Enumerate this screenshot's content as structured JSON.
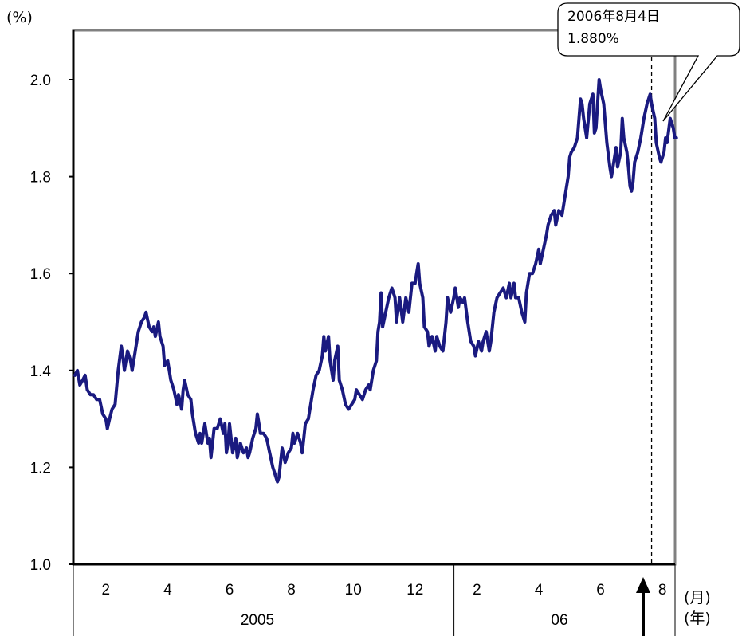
{
  "chart_data": {
    "type": "line",
    "y_unit": "(%)",
    "x_unit_month": "(月)",
    "x_unit_year": "(年)",
    "ylim": [
      1.0,
      2.1
    ],
    "yticks": [
      "1.0",
      "1.2",
      "1.4",
      "1.6",
      "1.8",
      "2.0"
    ],
    "ytick_values": [
      1.0,
      1.2,
      1.4,
      1.6,
      1.8,
      2.0
    ],
    "xlim": [
      0,
      19.3
    ],
    "month_ticks": [
      {
        "label": "2",
        "at": 1
      },
      {
        "label": "4",
        "at": 3
      },
      {
        "label": "6",
        "at": 5
      },
      {
        "label": "8",
        "at": 7
      },
      {
        "label": "10",
        "at": 9
      },
      {
        "label": "12",
        "at": 11
      },
      {
        "label": "2",
        "at": 13
      },
      {
        "label": "4",
        "at": 15
      },
      {
        "label": "6",
        "at": 17
      },
      {
        "label": "8",
        "at": 19
      }
    ],
    "years": [
      {
        "label": "2005",
        "from": 0,
        "to": 12
      },
      {
        "label": "06",
        "from": 12,
        "to": 19.3
      }
    ],
    "grid": false,
    "line_color": "#1a1a80",
    "reference_line_at": 18.7,
    "callout": {
      "date": "2006年8月4日",
      "value_text": "1.880%"
    },
    "series": [
      {
        "values": [
          [
            0.0,
            1.39
          ],
          [
            0.08,
            1.4
          ],
          [
            0.16,
            1.37
          ],
          [
            0.25,
            1.38
          ],
          [
            0.33,
            1.39
          ],
          [
            0.4,
            1.36
          ],
          [
            0.5,
            1.35
          ],
          [
            0.6,
            1.35
          ],
          [
            0.7,
            1.34
          ],
          [
            0.8,
            1.34
          ],
          [
            0.9,
            1.31
          ],
          [
            1.0,
            1.3
          ],
          [
            1.05,
            1.28
          ],
          [
            1.12,
            1.3
          ],
          [
            1.2,
            1.32
          ],
          [
            1.3,
            1.33
          ],
          [
            1.4,
            1.4
          ],
          [
            1.5,
            1.45
          ],
          [
            1.55,
            1.43
          ],
          [
            1.6,
            1.4
          ],
          [
            1.7,
            1.44
          ],
          [
            1.8,
            1.42
          ],
          [
            1.85,
            1.4
          ],
          [
            1.95,
            1.44
          ],
          [
            2.05,
            1.48
          ],
          [
            2.15,
            1.5
          ],
          [
            2.25,
            1.51
          ],
          [
            2.3,
            1.52
          ],
          [
            2.4,
            1.49
          ],
          [
            2.5,
            1.48
          ],
          [
            2.55,
            1.49
          ],
          [
            2.6,
            1.47
          ],
          [
            2.7,
            1.5
          ],
          [
            2.75,
            1.47
          ],
          [
            2.85,
            1.45
          ],
          [
            2.9,
            1.41
          ],
          [
            3.0,
            1.42
          ],
          [
            3.1,
            1.38
          ],
          [
            3.2,
            1.36
          ],
          [
            3.3,
            1.33
          ],
          [
            3.35,
            1.35
          ],
          [
            3.45,
            1.32
          ],
          [
            3.5,
            1.36
          ],
          [
            3.55,
            1.38
          ],
          [
            3.65,
            1.35
          ],
          [
            3.75,
            1.34
          ],
          [
            3.8,
            1.31
          ],
          [
            3.9,
            1.27
          ],
          [
            4.0,
            1.25
          ],
          [
            4.05,
            1.27
          ],
          [
            4.1,
            1.25
          ],
          [
            4.2,
            1.29
          ],
          [
            4.3,
            1.25
          ],
          [
            4.35,
            1.26
          ],
          [
            4.4,
            1.22
          ],
          [
            4.5,
            1.28
          ],
          [
            4.6,
            1.28
          ],
          [
            4.7,
            1.3
          ],
          [
            4.8,
            1.27
          ],
          [
            4.85,
            1.29
          ],
          [
            4.9,
            1.23
          ],
          [
            4.95,
            1.25
          ],
          [
            5.0,
            1.29
          ],
          [
            5.1,
            1.23
          ],
          [
            5.2,
            1.26
          ],
          [
            5.25,
            1.22
          ],
          [
            5.35,
            1.25
          ],
          [
            5.45,
            1.23
          ],
          [
            5.55,
            1.24
          ],
          [
            5.6,
            1.22
          ],
          [
            5.65,
            1.23
          ],
          [
            5.75,
            1.26
          ],
          [
            5.85,
            1.28
          ],
          [
            5.9,
            1.31
          ],
          [
            5.95,
            1.29
          ],
          [
            6.0,
            1.27
          ],
          [
            6.1,
            1.27
          ],
          [
            6.2,
            1.26
          ],
          [
            6.3,
            1.23
          ],
          [
            6.4,
            1.2
          ],
          [
            6.45,
            1.19
          ],
          [
            6.5,
            1.18
          ],
          [
            6.55,
            1.17
          ],
          [
            6.6,
            1.18
          ],
          [
            6.7,
            1.24
          ],
          [
            6.8,
            1.21
          ],
          [
            6.9,
            1.23
          ],
          [
            7.0,
            1.24
          ],
          [
            7.05,
            1.27
          ],
          [
            7.1,
            1.25
          ],
          [
            7.2,
            1.27
          ],
          [
            7.3,
            1.25
          ],
          [
            7.35,
            1.23
          ],
          [
            7.45,
            1.29
          ],
          [
            7.55,
            1.3
          ],
          [
            7.65,
            1.34
          ],
          [
            7.7,
            1.36
          ],
          [
            7.8,
            1.39
          ],
          [
            7.9,
            1.4
          ],
          [
            8.0,
            1.43
          ],
          [
            8.05,
            1.47
          ],
          [
            8.1,
            1.44
          ],
          [
            8.2,
            1.47
          ],
          [
            8.25,
            1.42
          ],
          [
            8.35,
            1.38
          ],
          [
            8.4,
            1.42
          ],
          [
            8.5,
            1.45
          ],
          [
            8.55,
            1.38
          ],
          [
            8.65,
            1.36
          ],
          [
            8.75,
            1.33
          ],
          [
            8.85,
            1.32
          ],
          [
            8.95,
            1.33
          ],
          [
            9.05,
            1.34
          ],
          [
            9.1,
            1.36
          ],
          [
            9.2,
            1.35
          ],
          [
            9.3,
            1.34
          ],
          [
            9.4,
            1.36
          ],
          [
            9.5,
            1.37
          ],
          [
            9.55,
            1.36
          ],
          [
            9.65,
            1.4
          ],
          [
            9.75,
            1.42
          ],
          [
            9.8,
            1.48
          ],
          [
            9.85,
            1.5
          ],
          [
            9.9,
            1.56
          ],
          [
            9.95,
            1.49
          ],
          [
            10.05,
            1.52
          ],
          [
            10.15,
            1.55
          ],
          [
            10.25,
            1.57
          ],
          [
            10.35,
            1.55
          ],
          [
            10.4,
            1.5
          ],
          [
            10.5,
            1.55
          ],
          [
            10.6,
            1.5
          ],
          [
            10.7,
            1.55
          ],
          [
            10.8,
            1.52
          ],
          [
            10.9,
            1.58
          ],
          [
            11.0,
            1.58
          ],
          [
            11.05,
            1.6
          ],
          [
            11.1,
            1.62
          ],
          [
            11.15,
            1.58
          ],
          [
            11.25,
            1.55
          ],
          [
            11.3,
            1.49
          ],
          [
            11.4,
            1.48
          ],
          [
            11.45,
            1.45
          ],
          [
            11.55,
            1.47
          ],
          [
            11.65,
            1.44
          ],
          [
            11.7,
            1.47
          ],
          [
            11.8,
            1.45
          ],
          [
            11.9,
            1.44
          ],
          [
            12.0,
            1.5
          ],
          [
            12.05,
            1.55
          ],
          [
            12.15,
            1.52
          ],
          [
            12.25,
            1.55
          ],
          [
            12.3,
            1.57
          ],
          [
            12.4,
            1.53
          ],
          [
            12.45,
            1.55
          ],
          [
            12.55,
            1.54
          ],
          [
            12.6,
            1.55
          ],
          [
            12.7,
            1.5
          ],
          [
            12.8,
            1.46
          ],
          [
            12.9,
            1.45
          ],
          [
            12.95,
            1.43
          ],
          [
            13.05,
            1.46
          ],
          [
            13.15,
            1.44
          ],
          [
            13.2,
            1.46
          ],
          [
            13.3,
            1.48
          ],
          [
            13.4,
            1.44
          ],
          [
            13.45,
            1.46
          ],
          [
            13.55,
            1.52
          ],
          [
            13.65,
            1.55
          ],
          [
            13.75,
            1.56
          ],
          [
            13.85,
            1.57
          ],
          [
            13.95,
            1.55
          ],
          [
            14.05,
            1.58
          ],
          [
            14.1,
            1.55
          ],
          [
            14.2,
            1.58
          ],
          [
            14.25,
            1.55
          ],
          [
            14.35,
            1.55
          ],
          [
            14.45,
            1.52
          ],
          [
            14.55,
            1.5
          ],
          [
            14.6,
            1.56
          ],
          [
            14.7,
            1.6
          ],
          [
            14.8,
            1.6
          ],
          [
            14.9,
            1.62
          ],
          [
            15.0,
            1.65
          ],
          [
            15.05,
            1.62
          ],
          [
            15.15,
            1.65
          ],
          [
            15.25,
            1.68
          ],
          [
            15.3,
            1.7
          ],
          [
            15.4,
            1.72
          ],
          [
            15.5,
            1.73
          ],
          [
            15.55,
            1.7
          ],
          [
            15.65,
            1.73
          ],
          [
            15.75,
            1.72
          ],
          [
            15.85,
            1.76
          ],
          [
            15.95,
            1.8
          ],
          [
            16.0,
            1.84
          ],
          [
            16.05,
            1.85
          ],
          [
            16.15,
            1.86
          ],
          [
            16.25,
            1.88
          ],
          [
            16.35,
            1.96
          ],
          [
            16.4,
            1.95
          ],
          [
            16.45,
            1.92
          ],
          [
            16.55,
            1.88
          ],
          [
            16.65,
            1.95
          ],
          [
            16.75,
            1.97
          ],
          [
            16.8,
            1.89
          ],
          [
            16.85,
            1.9
          ],
          [
            16.95,
            2.0
          ],
          [
            17.0,
            1.98
          ],
          [
            17.1,
            1.95
          ],
          [
            17.2,
            1.87
          ],
          [
            17.3,
            1.82
          ],
          [
            17.35,
            1.8
          ],
          [
            17.45,
            1.84
          ],
          [
            17.5,
            1.86
          ],
          [
            17.55,
            1.82
          ],
          [
            17.65,
            1.85
          ],
          [
            17.7,
            1.92
          ],
          [
            17.75,
            1.88
          ],
          [
            17.85,
            1.85
          ],
          [
            17.9,
            1.82
          ],
          [
            17.95,
            1.78
          ],
          [
            18.0,
            1.77
          ],
          [
            18.05,
            1.79
          ],
          [
            18.1,
            1.83
          ],
          [
            18.2,
            1.85
          ],
          [
            18.3,
            1.88
          ],
          [
            18.4,
            1.92
          ],
          [
            18.5,
            1.95
          ],
          [
            18.6,
            1.97
          ],
          [
            18.65,
            1.95
          ],
          [
            18.75,
            1.92
          ],
          [
            18.8,
            1.87
          ],
          [
            18.9,
            1.84
          ],
          [
            18.95,
            1.83
          ],
          [
            19.05,
            1.85
          ],
          [
            19.1,
            1.88
          ],
          [
            19.15,
            1.87
          ],
          [
            19.25,
            1.92
          ],
          [
            19.3,
            1.91
          ],
          [
            19.35,
            1.9
          ],
          [
            19.4,
            1.88
          ],
          [
            19.45,
            1.88
          ]
        ]
      }
    ]
  }
}
